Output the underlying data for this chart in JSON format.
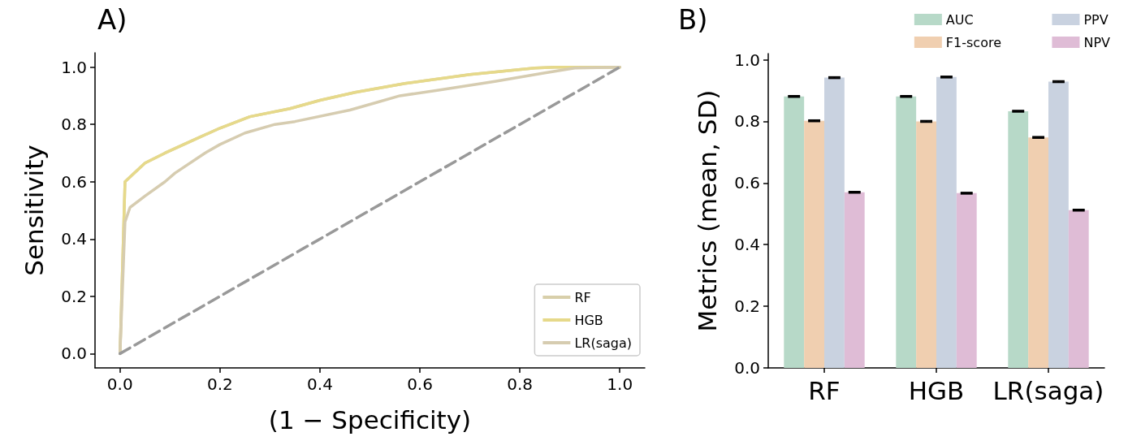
{
  "chart_data": [
    {
      "type": "line",
      "title": "A)",
      "xlabel": "(1 − Specificity)",
      "ylabel": "Sensitivity",
      "series": [
        {
          "name": "RF",
          "color": "#d8cfaa",
          "x": [
            0,
            0.01,
            0.05,
            0.09,
            0.14,
            0.2,
            0.26,
            0.34,
            0.4,
            0.47,
            0.57,
            0.7,
            0.83,
            0.87,
            1
          ],
          "values": [
            0,
            0.6,
            0.665,
            0.7,
            0.74,
            0.787,
            0.827,
            0.855,
            0.884,
            0.912,
            0.943,
            0.974,
            0.997,
            1,
            1
          ]
        },
        {
          "name": "HGB",
          "color": "#e6d98a",
          "x": [
            0,
            0.01,
            0.05,
            0.09,
            0.14,
            0.2,
            0.26,
            0.34,
            0.4,
            0.47,
            0.57,
            0.7,
            0.83,
            0.87,
            1
          ],
          "values": [
            0,
            0.6,
            0.665,
            0.7,
            0.74,
            0.787,
            0.827,
            0.855,
            0.884,
            0.912,
            0.943,
            0.974,
            0.997,
            1,
            1
          ]
        },
        {
          "name": "LR(saga)",
          "color": "#d6ccb0",
          "x": [
            0,
            0.01,
            0.02,
            0.05,
            0.09,
            0.11,
            0.17,
            0.2,
            0.25,
            0.31,
            0.35,
            0.46,
            0.51,
            0.56,
            0.64,
            0.75,
            0.85,
            0.91,
            1
          ],
          "values": [
            0,
            0.46,
            0.51,
            0.55,
            0.6,
            0.63,
            0.7,
            0.73,
            0.77,
            0.8,
            0.81,
            0.85,
            0.875,
            0.9,
            0.92,
            0.95,
            0.98,
            0.997,
            1
          ]
        },
        {
          "color": "#999999",
          "line_style": "dashed",
          "x": [
            0,
            1
          ],
          "values": [
            0,
            1
          ]
        }
      ],
      "xlim": [
        -0.05,
        1.05
      ],
      "ylim": [
        -0.05,
        1.05
      ],
      "xticks": [
        {
          "value": 0,
          "label": "0.0"
        },
        {
          "value": 0.2,
          "label": "0.2"
        },
        {
          "value": 0.4,
          "label": "0.4"
        },
        {
          "value": 0.6,
          "label": "0.6"
        },
        {
          "value": 0.8,
          "label": "0.8"
        },
        {
          "value": 1,
          "label": "1.0"
        }
      ],
      "yticks": [
        {
          "value": 0,
          "label": "0.0"
        },
        {
          "value": 0.2,
          "label": "0.2"
        },
        {
          "value": 0.4,
          "label": "0.4"
        },
        {
          "value": 0.6,
          "label": "0.6"
        },
        {
          "value": 0.8,
          "label": "0.8"
        },
        {
          "value": 1,
          "label": "1.0"
        }
      ],
      "grid": false,
      "legend": "bottom right",
      "marker": "none",
      "line_style": "solid"
    },
    {
      "type": "bar",
      "title": "B)",
      "ylabel": "Metrics (mean, SD)",
      "categories": [
        "RF",
        "HGB",
        "LR(saga)"
      ],
      "series": [
        {
          "name": "AUC",
          "color": "#b7d9c8",
          "values": [
            0.881,
            0.881,
            0.833
          ],
          "errors": [
            0.002,
            0.002,
            0.002
          ]
        },
        {
          "name": "F1-score",
          "color": "#f0cfb0",
          "values": [
            0.802,
            0.8,
            0.748
          ],
          "errors": [
            0.002,
            0.002,
            0.002
          ]
        },
        {
          "name": "PPV",
          "color": "#c9d2e0",
          "values": [
            0.942,
            0.944,
            0.929
          ],
          "errors": [
            0.002,
            0.002,
            0.002
          ]
        },
        {
          "name": "NPV",
          "color": "#dfbcd6",
          "values": [
            0.57,
            0.567,
            0.512
          ],
          "errors": [
            0.002,
            0.002,
            0.002
          ]
        }
      ],
      "ylim": [
        0,
        1.02
      ],
      "yticks": [
        {
          "value": 0,
          "label": "0.0"
        },
        {
          "value": 0.2,
          "label": "0.2"
        },
        {
          "value": 0.4,
          "label": "0.4"
        },
        {
          "value": 0.6,
          "label": "0.6"
        },
        {
          "value": 0.8,
          "label": "0.8"
        },
        {
          "value": 1,
          "label": "1.0"
        }
      ],
      "grid": false,
      "legend": "top right"
    }
  ]
}
